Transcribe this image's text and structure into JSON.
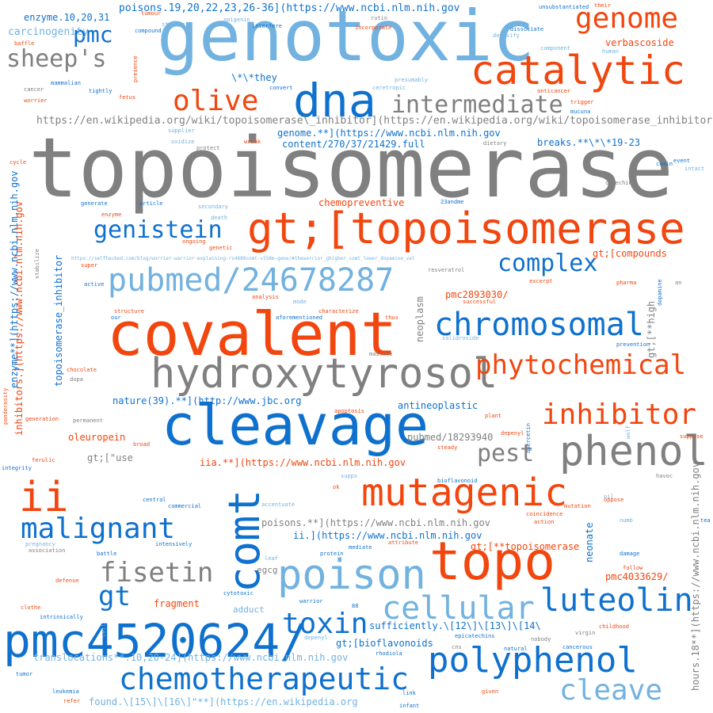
{
  "palette": {
    "gray": "#808080",
    "light_blue": "#72b2e0",
    "blue": "#0f71ce",
    "orange": "#f2460f"
  },
  "words": {
    "topoisomerase": "topoisomerase",
    "genotoxic": "genotoxic",
    "covalent": "covalent",
    "cleavage": "cleavage",
    "topo": "topo",
    "gt_topoisomerase": "gt;[topoisomerase",
    "hydroxytyrosol": "hydroxytyrosol",
    "dna": "dna",
    "catalytic": "catalytic",
    "comt": "comt",
    "pmc4520624": "pmc4520624/",
    "poison": "poison",
    "phenol": "phenol",
    "mutagenic": "mutagenic",
    "pubmed_24678287": "pubmed/24678287",
    "chromosomal": "chromosomal",
    "polyphenol": "polyphenol",
    "genome": "genome",
    "ii": "ii",
    "phytochemical": "phytochemical",
    "inhibitor": "inhibitor",
    "malignant": "malignant",
    "cellular": "cellular",
    "luteolin": "luteolin",
    "chemotherapeutic": "chemotherapeutic",
    "olive": "olive",
    "fisetin": "fisetin",
    "cleave": "cleave",
    "complex": "complex",
    "pest": "pest",
    "intermediate": "intermediate",
    "sheeps": "sheep's",
    "genistein": "genistein",
    "toxin": "toxin",
    "pmc": "pmc",
    "gt": "gt",
    "carcinogenity": "carcinogenity",
    "poisons_url": "poisons.19,20,22,23,26-36](https://www.ncbi.nlm.nih.gov",
    "enzyme_nums": "enzyme.10,20,31",
    "wiki_url": "https://en.wikipedia.org/wiki/topoisomerase\\_inhibitor](https://en.wikipedia.org/wiki/topoisomerase_inhibitor",
    "genome_url": "genome.**](https://www.ncbi.nlm.nih.gov",
    "content_url": "content/270/37/21429.full",
    "breaks": "breaks.**\\*\\*19-23",
    "they": "\\*\\*they",
    "chemopreventive": "chemopreventive",
    "gt_compounds": "gt;[compounds",
    "pmc2893030": "pmc2893030/",
    "verbascoside": "verbascoside",
    "nature_url": "nature(39).**](http://www.jbc.org",
    "antineoplastic": "antineoplastic",
    "oleuropein": "oleuropein",
    "pubmed_18293940": "pubmed/18293940",
    "gt_use": "gt;[\"use",
    "iia_url": "iia.**](https://www.ncbi.nlm.nih.gov",
    "poisons2_url": "poisons.**](https://www.ncbi.nlm.nih.gov",
    "ii_url": "ii.](https://www.ncbi.nlm.nih.gov",
    "gt_topoisomerase2": "gt;[**topoisomerase",
    "pmc4033629": "pmc4033629/",
    "gt_bioflavonoids": "gt;[bioflavonoids",
    "sufficiently": "sufficiently.\\[12\\]\\[13\\]\\[14\\",
    "translocations_url": "translocations**.10,20-24](https://www.ncbi.nlm.nih.gov",
    "found_url": "found.\\[15\\]\\[16\\]\"**](https://en.wikipedia.org",
    "selfhacked_url": "https://selfhacked.com/blog/worrier-warrior-explaining-rs4680comt-v158m-gene/#thewarrior_ghigher_comt_lower_dopamine_val",
    "fragment": "fragment",
    "adduct": "adduct",
    "egcg": "egcg",
    "neonate": "neonate",
    "neoplasm": "neoplasm",
    "topoisomerase_inhibitor": "topoisomerase_inhibitor",
    "inhibitors_url": "inhibitors.](https://www.ncbi.nlm.nih.gov",
    "enzyme_url": "enzyme**](https://www.ncbi.nlm.nih.gov",
    "hours_url": "hours.18**](https://www.ncbi.nlm.nih.gov",
    "gt_high": "gt;[**high",
    "small_words": {
      "tumour": "tumour",
      "rutin": "rutin",
      "unsubstantiated": "unsubstantiated",
      "their": "their",
      "compound": "compound",
      "stumble": "stumble",
      "interfere": "interfere",
      "apigenin": "apigenin",
      "incorporate": "incorporate",
      "dissociate": "dissociate",
      "baffle": "baffle",
      "detoxify": "detoxify",
      "component": "component",
      "human": "human",
      "presence": "presence",
      "mammalian": "mammalian",
      "cancer": "cancer",
      "worrier": "worrier",
      "tightly": "tightly",
      "fetus": "fetus",
      "convert": "convert",
      "presumably": "presumably",
      "ceretropic": "ceretropic",
      "anticancer": "anticancer",
      "mucuna": "mucuna",
      "trigger": "trigger",
      "supplier": "supplier",
      "oxidize": "oxidize",
      "protect": "protect",
      "wreak": "wreak",
      "dietary": "dietary",
      "cycle": "cycle",
      "cumin": "cumin",
      "event": "event",
      "intact": "intact",
      "catechin": "catechin",
      "generate": "generate",
      "article": "article",
      "secondary": "secondary",
      "twenty_three": "23andme",
      "enzyme": "enzyme",
      "death": "death",
      "genetic": "genetic",
      "ongoing": "ongoing",
      "stabilize": "stabilize",
      "super": "super",
      "active": "active",
      "resveratrol": "resveratrol",
      "excerpt": "excerpt",
      "pharma": "pharma",
      "an": "an",
      "dopamine": "dopamine",
      "analysis": "analysis",
      "mode": "mode",
      "successful": "successful",
      "structure": "structure",
      "characterize": "characterize",
      "our": "our",
      "aforementioned": "aforementioned",
      "thus": "thus",
      "salidroside": "salidroside",
      "prevention": "prevention",
      "massive": "massive",
      "chocolate": "chocolate",
      "dopa": "dopa",
      "ponderosity": "ponderosity",
      "generation": "generation",
      "permanent": "permanent",
      "apoptosis": "apoptosis",
      "plant": "plant",
      "quercetin": "quercetin",
      "depenyl": "depenyl",
      "wolf": "wolf",
      "suppose": "suppose",
      "broad": "broad",
      "steady": "steady",
      "ferulic": "ferulic",
      "integrity": "integrity",
      "havoc": "havoc",
      "bioflavonoid": "bioflavonoid",
      "supps": "supps",
      "ok": "ok",
      "oil": "oil",
      "central": "central",
      "commercial": "commercial",
      "accentuate": "accentuate",
      "mutation": "mutation",
      "oppose": "oppose",
      "coincidence": "coincidence",
      "action": "action",
      "numb": "numb",
      "tea": "tea",
      "pregnancy": "pregnancy",
      "association": "association",
      "attribute": "attribute",
      "intensively": "intensively",
      "mediate": "mediate",
      "protein": "protein",
      "battle": "battle",
      "leaf": "leaf",
      "damage": "damage",
      "follow": "follow",
      "defense": "defense",
      "cytotoxic": "cytotoxic",
      "warrior": "warrior",
      "clothe": "clothe",
      "eighty_eight": "88",
      "childhood": "childhood",
      "intrinsically": "intrinsically",
      "cell": "cell",
      "virgin": "virgin",
      "epicatechins": "epicatechins",
      "nobody": "nobody",
      "rhodiola": "rhodiola",
      "cns": "cns",
      "natural": "natural",
      "cancerous": "cancerous",
      "tumor": "tumor",
      "leukemia": "leukemia",
      "refer": "refer",
      "link": "link",
      "given": "given",
      "infant": "infant"
    }
  }
}
